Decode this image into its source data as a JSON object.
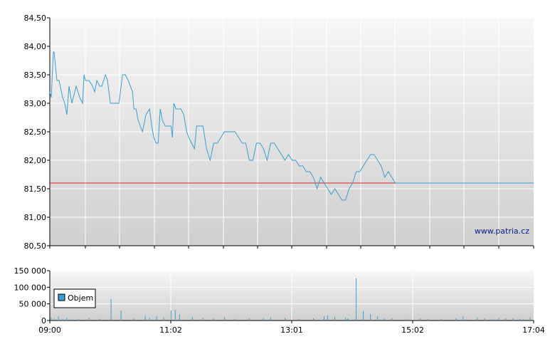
{
  "chart_data": [
    {
      "type": "line",
      "watermark": "www.patria.cz",
      "reference_value": 81.6,
      "reference_color": "#d62020",
      "line_color": "#3aa0d0",
      "ylim": [
        80.5,
        84.5
      ],
      "yticks": [
        "84,50",
        "84,00",
        "83,50",
        "83,00",
        "82,50",
        "82,00",
        "81,50",
        "81,00",
        "80,50"
      ],
      "grid": true,
      "series": [
        {
          "x": [
            0,
            2,
            5,
            6,
            10,
            13,
            18,
            21,
            24,
            27,
            31,
            37,
            42,
            46,
            48,
            50,
            52,
            55,
            60,
            63,
            66,
            70,
            73,
            78,
            81,
            85,
            88,
            92,
            97,
            102,
            106,
            110,
            116,
            118,
            121,
            124,
            127,
            130,
            135,
            140,
            143,
            146,
            149,
            152,
            155,
            158,
            162,
            166,
            170,
            172,
            174,
            177,
            180,
            184,
            188,
            192,
            195,
            199,
            203,
            206,
            209,
            212,
            215,
            220,
            225,
            230,
            235,
            240,
            245,
            250,
            255,
            260,
            265,
            270,
            275,
            280,
            285,
            290,
            295,
            300,
            305,
            310,
            315,
            320,
            325,
            330,
            335,
            340,
            345,
            350,
            355,
            360,
            365,
            370,
            375,
            380,
            385,
            390,
            395,
            400,
            405,
            410,
            415,
            420,
            425,
            430,
            435,
            440,
            445,
            450,
            455,
            460,
            465,
            470,
            475,
            480,
            485,
            490,
            495,
            500,
            505,
            510,
            515,
            520,
            525,
            530,
            535,
            540,
            545,
            550,
            555,
            560,
            565,
            570,
            575,
            580,
            585,
            590,
            595,
            600,
            605,
            610,
            615,
            620,
            625,
            630,
            635,
            640,
            645,
            650,
            655,
            660,
            665,
            670,
            675,
            679
          ],
          "values": [
            83.2,
            83.1,
            83.9,
            83.9,
            83.4,
            83.4,
            83.1,
            83.0,
            82.8,
            83.3,
            83.0,
            83.3,
            83.1,
            83.0,
            83.5,
            83.4,
            83.4,
            83.4,
            83.3,
            83.2,
            83.4,
            83.3,
            83.3,
            83.5,
            83.4,
            83.0,
            83.0,
            83.0,
            83.0,
            83.5,
            83.5,
            83.4,
            83.2,
            82.9,
            82.9,
            82.7,
            82.6,
            82.5,
            82.8,
            82.9,
            82.6,
            82.4,
            82.3,
            82.3,
            82.9,
            82.7,
            82.6,
            82.6,
            82.6,
            82.4,
            83.0,
            82.9,
            82.9,
            82.9,
            82.8,
            82.5,
            82.4,
            82.3,
            82.2,
            82.6,
            82.6,
            82.6,
            82.6,
            82.2,
            82.0,
            82.3,
            82.3,
            82.4,
            82.5,
            82.5,
            82.5,
            82.5,
            82.4,
            82.3,
            82.3,
            82.0,
            82.0,
            82.3,
            82.3,
            82.2,
            82.0,
            82.3,
            82.3,
            82.2,
            82.1,
            82.0,
            82.1,
            82.0,
            82.0,
            81.9,
            81.9,
            81.8,
            81.8,
            81.7,
            81.5,
            81.7,
            81.6,
            81.5,
            81.4,
            81.5,
            81.4,
            81.3,
            81.3,
            81.5,
            81.6,
            81.8,
            81.8,
            81.9,
            82.0,
            82.1,
            82.1,
            82.0,
            81.9,
            81.7,
            81.8,
            81.7,
            81.6,
            81.6,
            81.6,
            81.6,
            81.6,
            81.6,
            81.6,
            81.6,
            81.6,
            81.6,
            81.6,
            81.6,
            81.6,
            81.6,
            81.6,
            81.6,
            81.6,
            81.6,
            81.6,
            81.6,
            81.6,
            81.6,
            81.6,
            81.6,
            81.6,
            81.6,
            81.6,
            81.6,
            81.6,
            81.6,
            81.6,
            81.6,
            81.6,
            81.6,
            81.6,
            81.6,
            81.6,
            81.6,
            81.6,
            81.6
          ]
        }
      ]
    },
    {
      "type": "bar",
      "ylim": [
        0,
        150000
      ],
      "yticks": [
        "150 000",
        "100 000",
        "50 000",
        "0"
      ],
      "xticks": [
        "09:00",
        "11:02",
        "13:01",
        "15:02",
        "17:04"
      ],
      "grid": true,
      "legend": {
        "placement": "left",
        "label": "Objem",
        "swatch": "#3aa0d0"
      },
      "series": [
        {
          "name": "Objem",
          "x": [
            2,
            6,
            12,
            18,
            24,
            30,
            40,
            55,
            70,
            86,
            100,
            118,
            134,
            140,
            150,
            160,
            170,
            176,
            182,
            200,
            215,
            230,
            245,
            260,
            280,
            300,
            310,
            330,
            350,
            370,
            385,
            390,
            400,
            415,
            418,
            430,
            440,
            450,
            460,
            470,
            480,
            500,
            520,
            530,
            550,
            570,
            580,
            600,
            610,
            620,
            630,
            640,
            650,
            660,
            665,
            674
          ],
          "values": [
            9000,
            6000,
            12000,
            5000,
            8000,
            3000,
            4000,
            7000,
            5000,
            65000,
            30000,
            6000,
            14000,
            8000,
            12000,
            9000,
            30000,
            32000,
            18000,
            11000,
            8000,
            6000,
            10000,
            5000,
            7000,
            6000,
            9000,
            8000,
            5000,
            7000,
            12000,
            15000,
            11000,
            9000,
            6000,
            127000,
            28000,
            20000,
            12000,
            6000,
            7000,
            5000,
            6000,
            4000,
            5000,
            7000,
            12000,
            9000,
            6000,
            5000,
            8000,
            6000,
            7000,
            5000,
            4000,
            9000
          ]
        }
      ]
    }
  ]
}
